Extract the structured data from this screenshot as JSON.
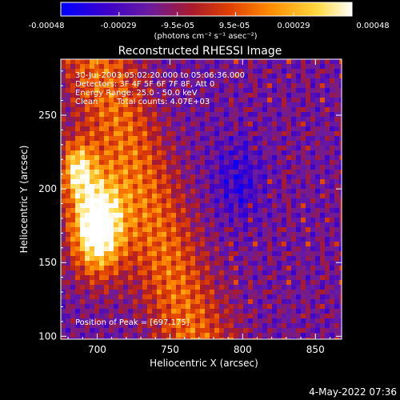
{
  "colorbar": {
    "ticks": [
      "-0.00048",
      "-0.00029",
      "-9.5e-05",
      "9.5e-05",
      "0.00029",
      "0.00048"
    ],
    "units": "(photons cm⁻² s⁻¹ asec⁻²)",
    "range": [
      -0.00048,
      0.00048
    ],
    "stops": [
      "#0000ff",
      "#3a00cc",
      "#6a1ba0",
      "#aa1a2a",
      "#e04000",
      "#ff8c00",
      "#ffd840",
      "#ffffff"
    ]
  },
  "chart_data": {
    "type": "heatmap",
    "title": "Reconstructed RHESSI Image",
    "xlabel": "Heliocentric X (arcsec)",
    "ylabel": "Heliocentric Y (arcsec)",
    "xlim": [
      675,
      868
    ],
    "ylim": [
      98,
      288
    ],
    "x_ticks": [
      "700",
      "750",
      "800",
      "850"
    ],
    "y_ticks": [
      "100",
      "150",
      "200",
      "250"
    ],
    "x_tick_values": [
      700,
      750,
      800,
      850
    ],
    "y_tick_values": [
      100,
      150,
      200,
      250
    ],
    "peak": [
      697,
      175
    ],
    "annotations": [
      "30-Jul-2003 05:02:20.000 to 05:06:36.000",
      "Detectors: 3F 4F 5F 6F 7F 8F, Att 0",
      "Energy Range: 25.0 - 50.0 keV",
      "Clean",
      "Total counts: 4.07E+03"
    ],
    "peak_label": "Position of Peak = [697,175]"
  },
  "timestamp": "4-May-2022 07:36"
}
